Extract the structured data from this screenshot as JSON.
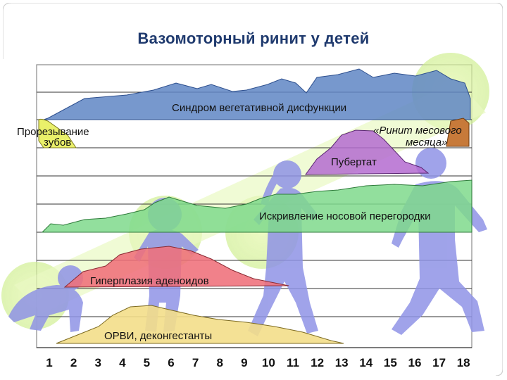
{
  "slide": {
    "title": "Вазомоторный ринит у детей"
  },
  "labels": {
    "veg": "Синдром вегетативной дисфункции",
    "teeth_1": "Прорезывание",
    "teeth_2": "зубов",
    "month_1": "«Ринит месового",
    "month_2": "месяца»",
    "puberty": "Пубертат",
    "septum": "Искривление носовой перегородки",
    "adenoid": "Гиперплазия аденоидов",
    "orvi": "ОРВИ, деконгестанты"
  },
  "x_axis": {
    "ticks": [
      "1",
      "2",
      "3",
      "4",
      "5",
      "6",
      "7",
      "8",
      "9",
      "10",
      "11",
      "12",
      "13",
      "14",
      "15",
      "16",
      "17",
      "18"
    ]
  },
  "colors": {
    "title": "#1f3a6e",
    "veg_band": "#5f86c4",
    "septum_band": "#7fd98c",
    "adenoid_band": "#ef6f7a",
    "orvi_band": "#f3de8a",
    "puberty_band": "#b46bd0",
    "children": "#8f93e6",
    "glow": "#d8f4a0"
  },
  "icons": [
    "baby-crawling-icon",
    "toddler-icon",
    "girl-running-icon",
    "boy-running-icon"
  ]
}
